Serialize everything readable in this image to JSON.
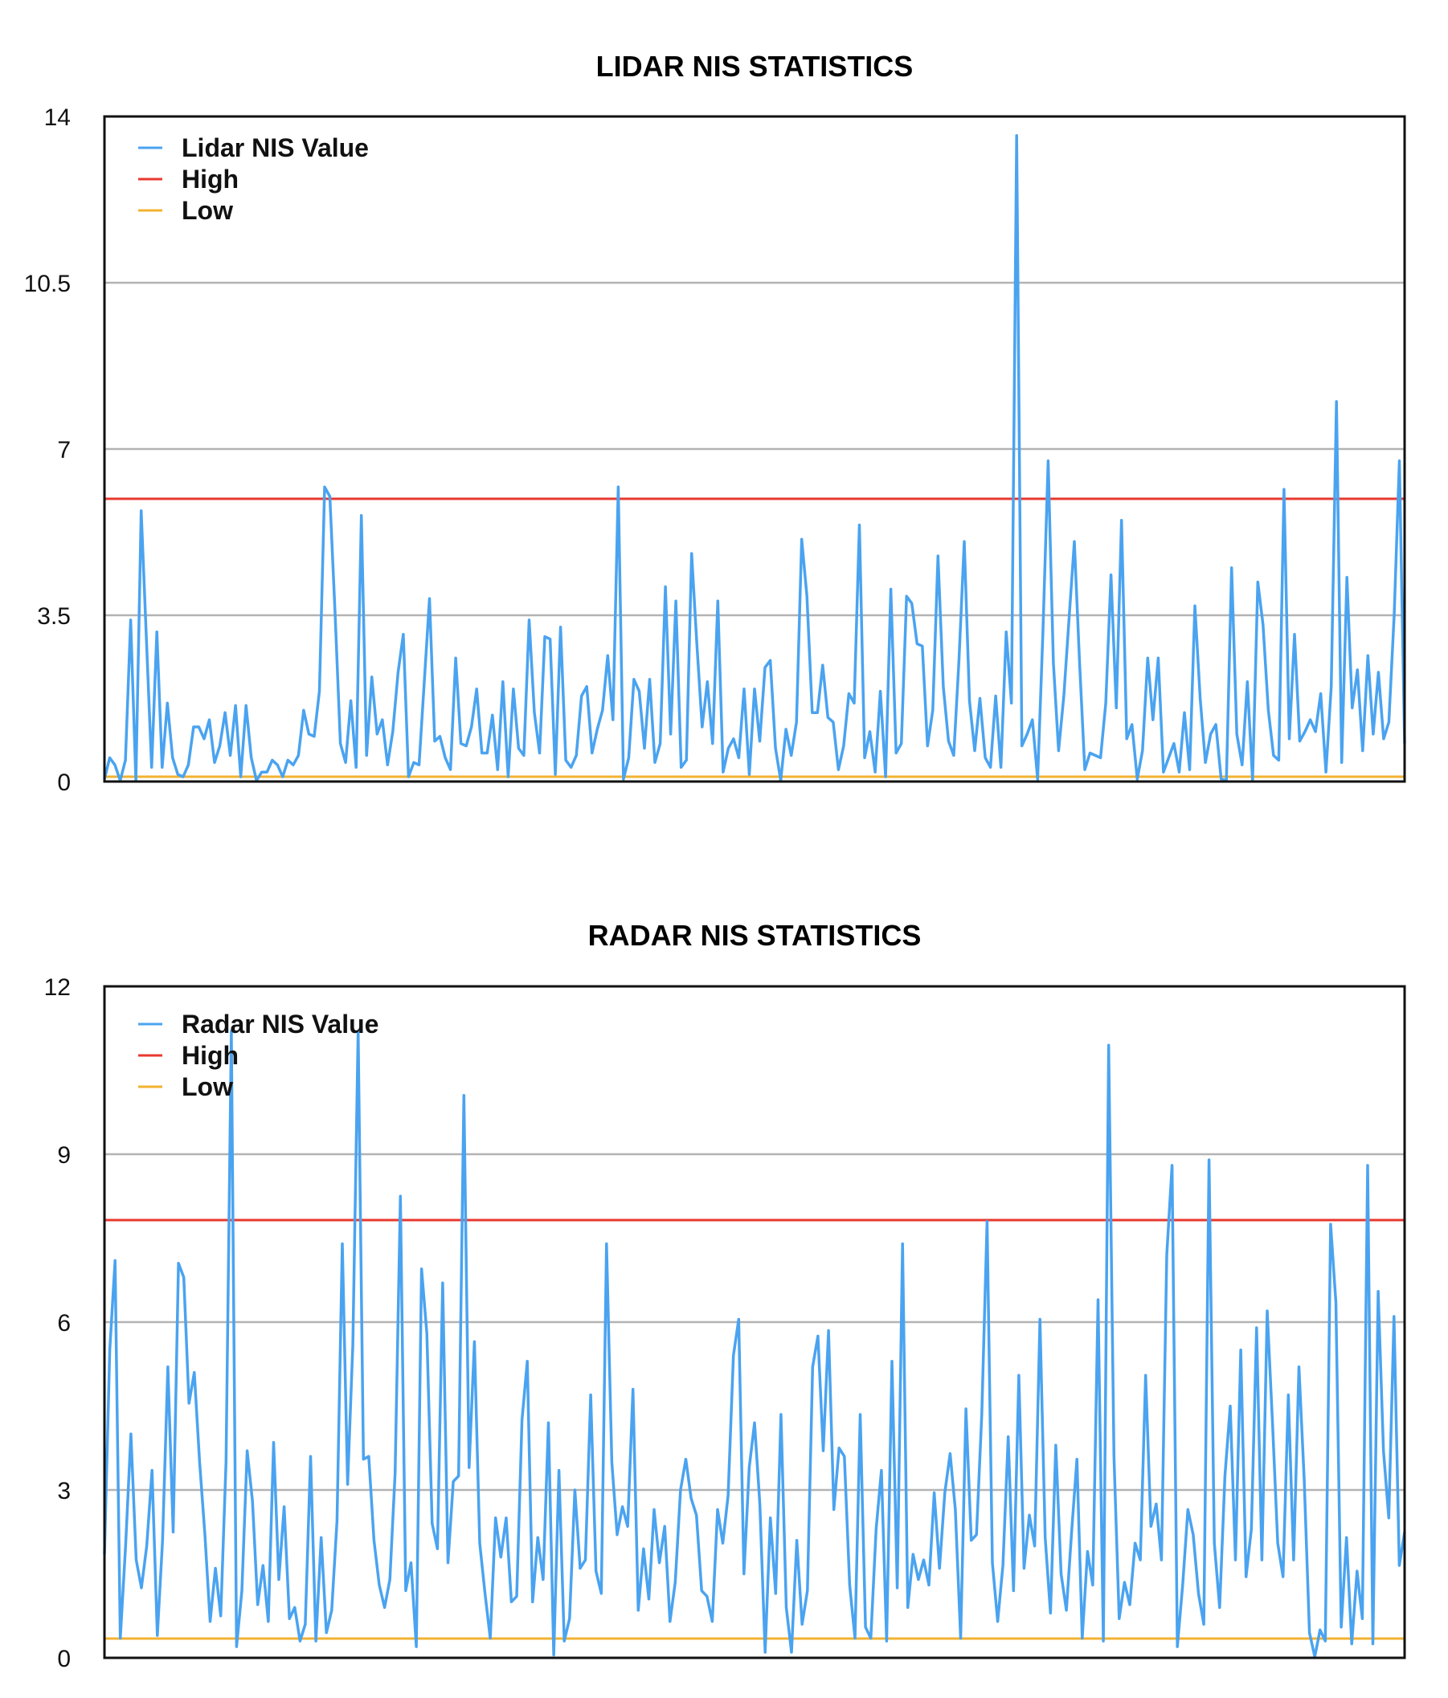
{
  "chart_data": [
    {
      "type": "line",
      "title": "LIDAR NIS STATISTICS",
      "xlabel": "",
      "ylabel": "",
      "ylim": [
        0,
        14
      ],
      "yticks": [
        0,
        3.5,
        7,
        10.5,
        14
      ],
      "yticklabels": [
        "0",
        "3.5",
        "7",
        "10.5",
        "14"
      ],
      "grid": true,
      "legend_position": "top-left",
      "colors": {
        "value": "#4aa3f0",
        "high": "#e8392f",
        "low": "#f2b230",
        "grid": "#b3b3b3",
        "frame": "#111111"
      },
      "series": [
        {
          "name": "Lidar NIS Value",
          "role": "value",
          "values": [
            0.05,
            0.5,
            0.35,
            0.02,
            0.45,
            3.4,
            0.02,
            5.7,
            3.0,
            0.3,
            3.15,
            0.3,
            1.65,
            0.5,
            0.15,
            0.1,
            0.35,
            1.15,
            1.15,
            0.9,
            1.3,
            0.4,
            0.75,
            1.45,
            0.55,
            1.6,
            0.1,
            1.6,
            0.5,
            0.02,
            0.2,
            0.2,
            0.45,
            0.35,
            0.1,
            0.45,
            0.35,
            0.55,
            1.5,
            1.0,
            0.95,
            1.9,
            6.2,
            6.0,
            3.5,
            0.8,
            0.4,
            1.7,
            0.3,
            5.6,
            0.55,
            2.2,
            1.0,
            1.3,
            0.35,
            1.05,
            2.3,
            3.1,
            0.1,
            0.4,
            0.35,
            2.1,
            3.85,
            0.85,
            0.95,
            0.5,
            0.25,
            2.6,
            0.8,
            0.75,
            1.15,
            1.95,
            0.6,
            0.6,
            1.4,
            0.25,
            2.1,
            0.1,
            1.95,
            0.7,
            0.55,
            3.4,
            1.45,
            0.6,
            3.05,
            3.0,
            0.15,
            3.25,
            0.45,
            0.3,
            0.55,
            1.8,
            2.0,
            0.6,
            1.1,
            1.5,
            2.65,
            1.3,
            6.2,
            0.05,
            0.5,
            2.15,
            1.9,
            0.7,
            2.15,
            0.4,
            0.8,
            4.1,
            1.0,
            3.8,
            0.3,
            0.45,
            4.8,
            2.9,
            1.15,
            2.1,
            0.8,
            3.8,
            0.2,
            0.7,
            0.9,
            0.5,
            1.95,
            0.15,
            1.95,
            0.85,
            2.4,
            2.55,
            0.7,
            0.02,
            1.1,
            0.55,
            1.25,
            5.1,
            3.9,
            1.45,
            1.45,
            2.45,
            1.35,
            1.25,
            0.25,
            0.75,
            1.85,
            1.65,
            5.4,
            0.5,
            1.05,
            0.2,
            1.9,
            0.1,
            4.05,
            0.6,
            0.8,
            3.9,
            3.75,
            2.9,
            2.85,
            0.75,
            1.5,
            4.75,
            2.0,
            0.85,
            0.55,
            2.55,
            5.05,
            1.7,
            0.65,
            1.75,
            0.5,
            0.3,
            1.8,
            0.3,
            3.15,
            1.65,
            13.6,
            0.75,
            1.0,
            1.3,
            0.05,
            3.1,
            6.75,
            2.5,
            0.65,
            1.8,
            3.45,
            5.05,
            2.5,
            0.25,
            0.6,
            0.55,
            0.5,
            1.65,
            4.35,
            1.55,
            5.5,
            0.9,
            1.2,
            0.05,
            0.65,
            2.6,
            1.3,
            2.6,
            0.2,
            0.5,
            0.8,
            0.2,
            1.45,
            0.25,
            3.7,
            1.75,
            0.4,
            1.0,
            1.2,
            0.05,
            0.02,
            4.5,
            1.0,
            0.35,
            2.1,
            0.02,
            4.2,
            3.3,
            1.5,
            0.55,
            0.45,
            6.15,
            0.9,
            3.1,
            0.85,
            1.05,
            1.3,
            1.05,
            1.85,
            0.2,
            2.0,
            8.0,
            0.4,
            4.3,
            1.55,
            2.35,
            0.65,
            2.65,
            1.0,
            2.3,
            0.9,
            1.25,
            3.5,
            6.75,
            0.8
          ]
        },
        {
          "name": "High",
          "role": "high",
          "constant": 5.99
        },
        {
          "name": "Low",
          "role": "low",
          "constant": 0.103
        }
      ]
    },
    {
      "type": "line",
      "title": "RADAR NIS STATISTICS",
      "xlabel": "",
      "ylabel": "",
      "ylim": [
        0,
        12
      ],
      "yticks": [
        0,
        3,
        6,
        9,
        12
      ],
      "yticklabels": [
        "0",
        "3",
        "6",
        "9",
        "12"
      ],
      "grid": true,
      "legend_position": "top-left",
      "colors": {
        "value": "#4aa3f0",
        "high": "#e8392f",
        "low": "#f2b230",
        "grid": "#b3b3b3",
        "frame": "#111111"
      },
      "series": [
        {
          "name": "Radar NIS Value",
          "role": "value",
          "values": [
            1.85,
            5.5,
            7.1,
            0.35,
            2.0,
            4.0,
            1.75,
            1.25,
            2.0,
            3.35,
            0.4,
            2.1,
            5.2,
            2.25,
            7.05,
            6.8,
            4.55,
            5.1,
            3.5,
            2.2,
            0.65,
            1.6,
            0.75,
            3.5,
            11.2,
            0.2,
            1.2,
            3.7,
            2.8,
            0.95,
            1.65,
            0.65,
            3.85,
            1.4,
            2.7,
            0.7,
            0.9,
            0.3,
            0.6,
            3.6,
            0.3,
            2.15,
            0.45,
            0.85,
            2.45,
            7.4,
            3.1,
            5.6,
            11.2,
            3.55,
            3.6,
            2.1,
            1.3,
            0.9,
            1.4,
            3.3,
            8.25,
            1.2,
            1.7,
            0.2,
            6.95,
            5.8,
            2.4,
            1.95,
            6.7,
            1.7,
            3.15,
            3.25,
            10.05,
            3.4,
            5.65,
            2.05,
            1.15,
            0.35,
            2.5,
            1.8,
            2.5,
            1.0,
            1.1,
            4.25,
            5.3,
            1.0,
            2.15,
            1.4,
            4.2,
            0.05,
            3.35,
            0.3,
            0.7,
            3.0,
            1.6,
            1.75,
            4.7,
            1.55,
            1.15,
            7.4,
            3.5,
            2.2,
            2.7,
            2.35,
            4.8,
            0.85,
            1.95,
            1.05,
            2.65,
            1.7,
            2.35,
            0.65,
            1.35,
            3.0,
            3.55,
            2.85,
            2.55,
            1.2,
            1.1,
            0.65,
            2.65,
            2.05,
            2.9,
            5.4,
            6.05,
            1.5,
            3.4,
            4.2,
            2.75,
            0.1,
            2.5,
            1.15,
            4.35,
            0.9,
            0.1,
            2.1,
            0.6,
            1.2,
            5.2,
            5.75,
            3.7,
            5.85,
            2.65,
            3.75,
            3.6,
            1.3,
            0.35,
            4.35,
            0.55,
            0.35,
            2.3,
            3.35,
            0.3,
            5.3,
            1.25,
            7.4,
            0.9,
            1.85,
            1.4,
            1.75,
            1.3,
            2.95,
            1.6,
            2.95,
            3.65,
            2.65,
            0.35,
            4.45,
            2.1,
            2.2,
            4.35,
            7.8,
            1.7,
            0.65,
            1.65,
            3.95,
            1.2,
            5.05,
            1.6,
            2.55,
            2.0,
            6.05,
            2.15,
            0.8,
            3.8,
            1.5,
            0.85,
            2.25,
            3.55,
            0.35,
            1.9,
            1.3,
            6.4,
            0.3,
            10.95,
            3.6,
            0.7,
            1.35,
            0.95,
            2.05,
            1.75,
            5.05,
            2.35,
            2.75,
            1.75,
            7.2,
            8.8,
            0.2,
            1.3,
            2.65,
            2.2,
            1.15,
            0.6,
            8.9,
            2.05,
            0.9,
            3.25,
            4.5,
            1.75,
            5.5,
            1.45,
            2.3,
            5.9,
            1.75,
            6.2,
            4.2,
            2.05,
            1.45,
            4.7,
            1.75,
            5.2,
            3.2,
            0.45,
            0.02,
            0.5,
            0.3,
            7.75,
            6.35,
            0.55,
            2.15,
            0.25,
            1.55,
            0.7,
            8.8,
            0.25,
            6.55,
            3.7,
            2.5,
            6.1,
            1.65,
            2.25
          ]
        },
        {
          "name": "High",
          "role": "high",
          "constant": 7.815
        },
        {
          "name": "Low",
          "role": "low",
          "constant": 0.352
        }
      ]
    }
  ]
}
